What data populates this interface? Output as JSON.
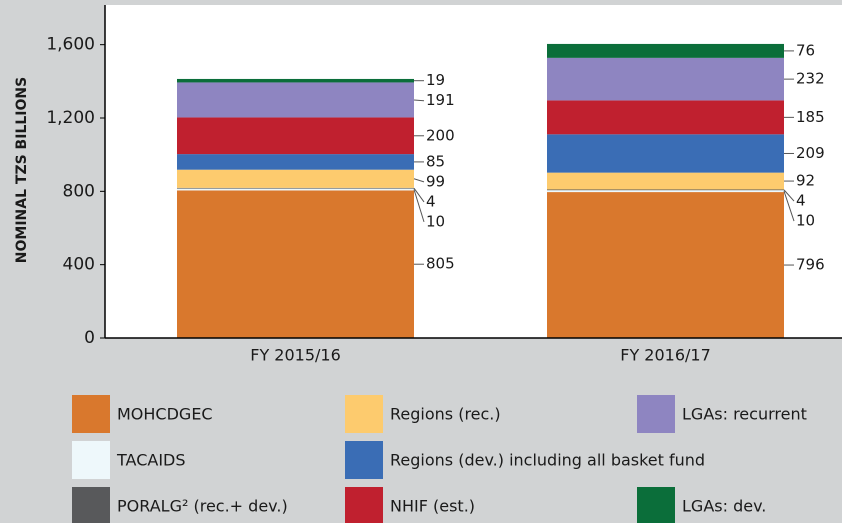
{
  "chart_data": {
    "type": "stacked_bar",
    "ylabel": "NOMINAL TZS BILLIONS",
    "categories": [
      "FY 2015/16",
      "FY 2016/17"
    ],
    "series": [
      {
        "name": "MOHCDGEC",
        "color": "#d9782d",
        "values": [
          805,
          796
        ]
      },
      {
        "name": "TACAIDS",
        "color": "#eef8fb",
        "values": [
          10,
          10
        ]
      },
      {
        "name": "PORALG² (rec.+ dev.)",
        "color": "#58595b",
        "values": [
          4,
          4
        ]
      },
      {
        "name": "Regions (rec.)",
        "color": "#fdcb6e",
        "values": [
          99,
          92
        ]
      },
      {
        "name": "Regions (dev.) including all basket fund",
        "color": "#3a6db5",
        "values": [
          85,
          209
        ]
      },
      {
        "name": "NHIF (est.)",
        "color": "#c0202f",
        "values": [
          200,
          185
        ]
      },
      {
        "name": "LGAs: recurrent",
        "color": "#8e85c1",
        "values": [
          191,
          232
        ]
      },
      {
        "name": "LGAs: dev.",
        "color": "#0b6e3a",
        "values": [
          19,
          76
        ]
      }
    ],
    "ylim": [
      0,
      1800
    ],
    "yticks": [
      0,
      400,
      800,
      {
        "value": 1200,
        "label": "1,200"
      },
      {
        "value": 1600,
        "label": "1,600"
      }
    ]
  }
}
